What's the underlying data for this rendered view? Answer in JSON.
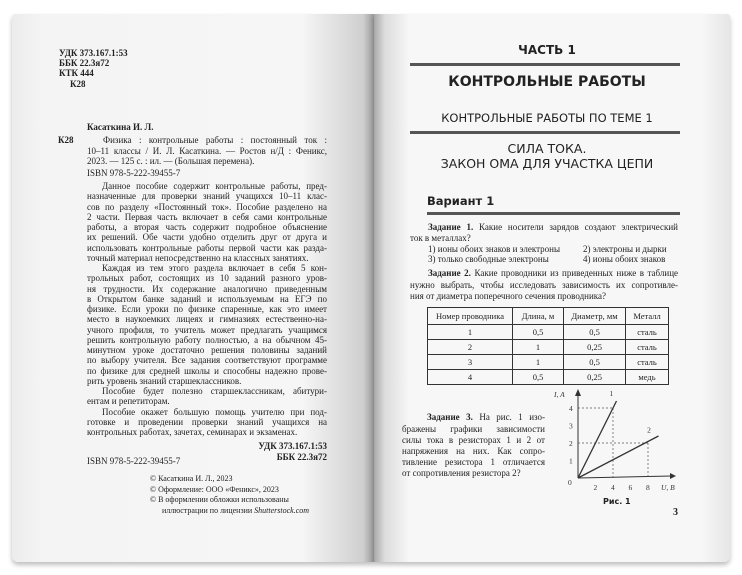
{
  "left_page": {
    "udk": "УДК 373.167.1:53",
    "bbk": "ББК 22.3я72",
    "ktk": "КТК 444",
    "code": "К28",
    "author": "Касаткина И. Л.",
    "code2": "К28",
    "biblio": [
      "Физика : контрольные работы : постоянный ток :",
      "10–11 классы / И. Л. Касаткина. — Ростов н/Д : Феникс,",
      "2023. — 125 с. : ил. — (Большая перемена)."
    ],
    "isbn": "ISBN 978-5-222-39455-7",
    "body": [
      "Данное пособие содержит контрольные работы, пред-",
      "назначенные для проверки знаний учащихся 10–11 клас-",
      "сов по разделу «Постоянный ток». Пособие разделено на",
      "2 части. Первая часть включает в себя сами контрольные",
      "работы, а вторая часть содержит подробное объяснение",
      "их решений. Обе части удобно отделить друг от друга и",
      "использовать контрольные работы первой части как разда-",
      "точный материал непосредственно на классных занятиях.",
      "Каждая из тем этого раздела включает в себя 5 кон-",
      "трольных работ, состоящих из 10 заданий разного уров-",
      "ня трудности. Их содержание аналогично приведенным",
      "в Открытом банке заданий и используемым на ЕГЭ по",
      "физике. Если уроки по физике спаренные, как это имеет",
      "место в наукоемких лицеях и гимназиях естественно-на-",
      "учного профиля, то учитель может предлагать учащимся",
      "решить контрольную работу полностью, а на обычном 45-",
      "минутном уроке достаточно решения половины заданий",
      "по выбору учителя. Все задания соответствуют программе",
      "по физике для средней школы и способны надежно прове-",
      "рить уровень знаний старшеклассников.",
      "Пособие будет полезно старшеклассникам, абитури-",
      "ентам и репетиторам.",
      "Пособие окажет большую помощь учителю при под-",
      "готовке и проведении проверки знаний учащихся на",
      "контрольных работах, зачетах, семинарах и экзаменах."
    ],
    "udk2": "УДК 373.167.1:53",
    "bbk2": "ББК 22.3я72",
    "isbn2": "ISBN 978-5-222-39455-7",
    "copyright": [
      "© Касаткина И. Л., 2023",
      "© Оформление: ООО «Феникс», 2023",
      "© В оформлении обложки использованы"
    ],
    "copyright_last": "иллюстрации по лицензии ",
    "copyright_brand": "Shutterstock.com"
  },
  "right_page": {
    "part": "ЧАСТЬ 1",
    "section": "КОНТРОЛЬНЫЕ РАБОТЫ",
    "topic": "КОНТРОЛЬНЫЕ РАБОТЫ ПО ТЕМЕ 1",
    "title1": "СИЛА ТОКА.",
    "title2": "ЗАКОН ОМА ДЛЯ УЧАСТКА ЦЕПИ",
    "variant": "Вариант 1",
    "task1_label": "Задание 1.",
    "task1_text": " Какие носители зарядов создают электрический",
    "task1_text2": "ток в металлах?",
    "task1_options": [
      "1) ионы обоих знаков и электроны",
      "2) электроны и дырки",
      "3) только свободные электроны",
      "4) ионы обоих знаков"
    ],
    "task2_label": "Задание 2.",
    "task2_text": " Какие проводники из приведенных ниже в таблице",
    "task2_lines": [
      "нужно выбрать, чтобы исследовать зависимость их сопротивле-",
      "ния от диаметра поперечного сечения проводника?"
    ],
    "table": {
      "headers": [
        "Номер проводника",
        "Длина, м",
        "Диаметр, мм",
        "Металл"
      ],
      "rows": [
        [
          "1",
          "0,5",
          "0,5",
          "сталь"
        ],
        [
          "2",
          "1",
          "0,25",
          "сталь"
        ],
        [
          "3",
          "1",
          "0,5",
          "сталь"
        ],
        [
          "4",
          "0,5",
          "0,25",
          "медь"
        ]
      ]
    },
    "task3_label": "Задание 3.",
    "task3_text": " На рис. 1 изо-",
    "task3_lines": [
      "бражены графики зависимости",
      "силы тока в резисторах 1 и 2 от",
      "напряжения на них. Как сопро-",
      "тивление резистора 1 отличается",
      "от сопротивления резистора 2?"
    ],
    "figure": {
      "ylabel": "I, A",
      "xlabel": "U, B",
      "origin": "0",
      "xticks": [
        "2",
        "4",
        "6",
        "8"
      ],
      "yticks": [
        "1",
        "2",
        "3",
        "4"
      ],
      "line1": "1",
      "line2": "2",
      "caption": "Рис. 1"
    },
    "page_number": "3"
  }
}
